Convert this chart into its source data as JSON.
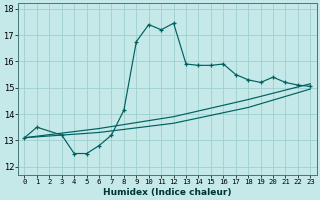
{
  "title": "",
  "xlabel": "Humidex (Indice chaleur)",
  "ylabel": "",
  "background_color": "#c5e8e8",
  "grid_color": "#9fcece",
  "line_color": "#006060",
  "xlim": [
    -0.5,
    23.5
  ],
  "ylim": [
    11.7,
    18.2
  ],
  "xticks": [
    0,
    1,
    2,
    3,
    4,
    5,
    6,
    7,
    8,
    9,
    10,
    11,
    12,
    13,
    14,
    15,
    16,
    17,
    18,
    19,
    20,
    21,
    22,
    23
  ],
  "yticks": [
    12,
    13,
    14,
    15,
    16,
    17,
    18
  ],
  "main_x": [
    0,
    1,
    3,
    4,
    5,
    6,
    7,
    8,
    9,
    10,
    11,
    12,
    13,
    14,
    15,
    16,
    17,
    18,
    19,
    20,
    21,
    22,
    23
  ],
  "main_y": [
    13.1,
    13.5,
    13.2,
    12.5,
    12.5,
    12.8,
    13.2,
    14.15,
    16.75,
    17.4,
    17.2,
    17.45,
    15.9,
    15.85,
    15.85,
    15.9,
    15.5,
    15.3,
    15.2,
    15.4,
    15.2,
    15.1,
    15.05
  ],
  "trend1_x": [
    0,
    6,
    12,
    18,
    23
  ],
  "trend1_y": [
    13.1,
    13.45,
    13.9,
    14.55,
    15.15
  ],
  "trend2_x": [
    0,
    6,
    12,
    18,
    23
  ],
  "trend2_y": [
    13.1,
    13.3,
    13.65,
    14.25,
    14.95
  ]
}
